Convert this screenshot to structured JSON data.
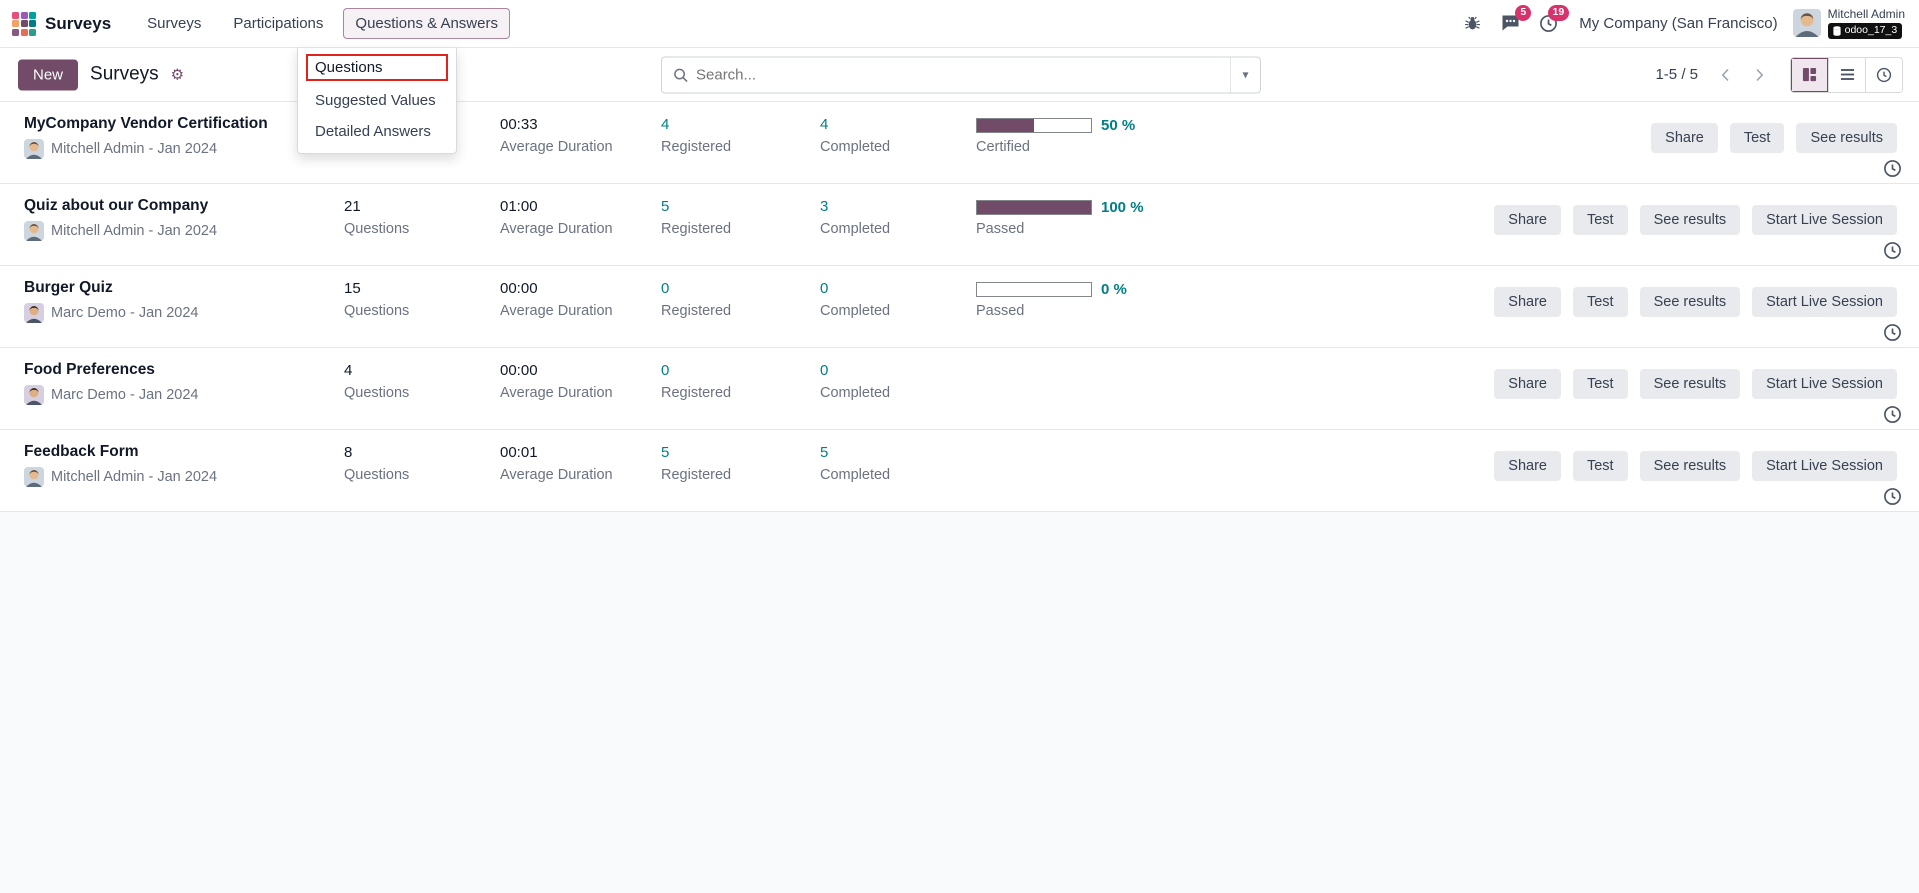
{
  "colors": {
    "accent_purple": "#714B67",
    "link_teal": "#017E84",
    "badge_pink": "#D6336C",
    "annotation_red": "#E0231C"
  },
  "icons": {
    "gear": "⚙",
    "caret_down": "▾"
  },
  "top_bar": {
    "app_name": "Surveys",
    "menu_items": [
      {
        "label": "Surveys",
        "active": false
      },
      {
        "label": "Participations",
        "active": false
      },
      {
        "label": "Questions & Answers",
        "active": true
      }
    ],
    "messages_badge": "5",
    "activities_badge": "19",
    "company": "My Company (San Francisco)",
    "user_name": "Mitchell Admin",
    "user_db": "odoo_17_3"
  },
  "dropdown_menu": {
    "items": [
      {
        "label": "Questions",
        "highlighted": true
      },
      {
        "label": "Suggested Values",
        "highlighted": false
      },
      {
        "label": "Detailed Answers",
        "highlighted": false
      }
    ]
  },
  "control_panel": {
    "new_button": "New",
    "title": "Surveys",
    "search_placeholder": "Search...",
    "pager": "1-5 / 5"
  },
  "labels": {
    "questions": "Questions",
    "average_duration": "Average Duration",
    "registered": "Registered",
    "completed": "Completed"
  },
  "row_buttons": {
    "share": "Share",
    "test": "Test",
    "see_results": "See results",
    "start_live_session": "Start Live Session"
  },
  "surveys": [
    {
      "title": "MyCompany Vendor Certification",
      "author": "Mitchell Admin - Jan 2024",
      "questions": "",
      "duration": "00:33",
      "registered": "4",
      "completed": "4",
      "success": {
        "percent": 50,
        "text": "50 %",
        "label": "Certified"
      }
    },
    {
      "title": "Quiz about our Company",
      "author": "Mitchell Admin - Jan 2024",
      "questions": "21",
      "duration": "01:00",
      "registered": "5",
      "completed": "3",
      "success": {
        "percent": 100,
        "text": "100 %",
        "label": "Passed"
      }
    },
    {
      "title": "Burger Quiz",
      "author": "Marc Demo - Jan 2024",
      "questions": "15",
      "duration": "00:00",
      "registered": "0",
      "completed": "0",
      "success": {
        "percent": 0,
        "text": "0 %",
        "label": "Passed"
      }
    },
    {
      "title": "Food Preferences",
      "author": "Marc Demo - Jan 2024",
      "questions": "4",
      "duration": "00:00",
      "registered": "0",
      "completed": "0"
    },
    {
      "title": "Feedback Form",
      "author": "Mitchell Admin - Jan 2024",
      "questions": "8",
      "duration": "00:01",
      "registered": "5",
      "completed": "5"
    }
  ]
}
